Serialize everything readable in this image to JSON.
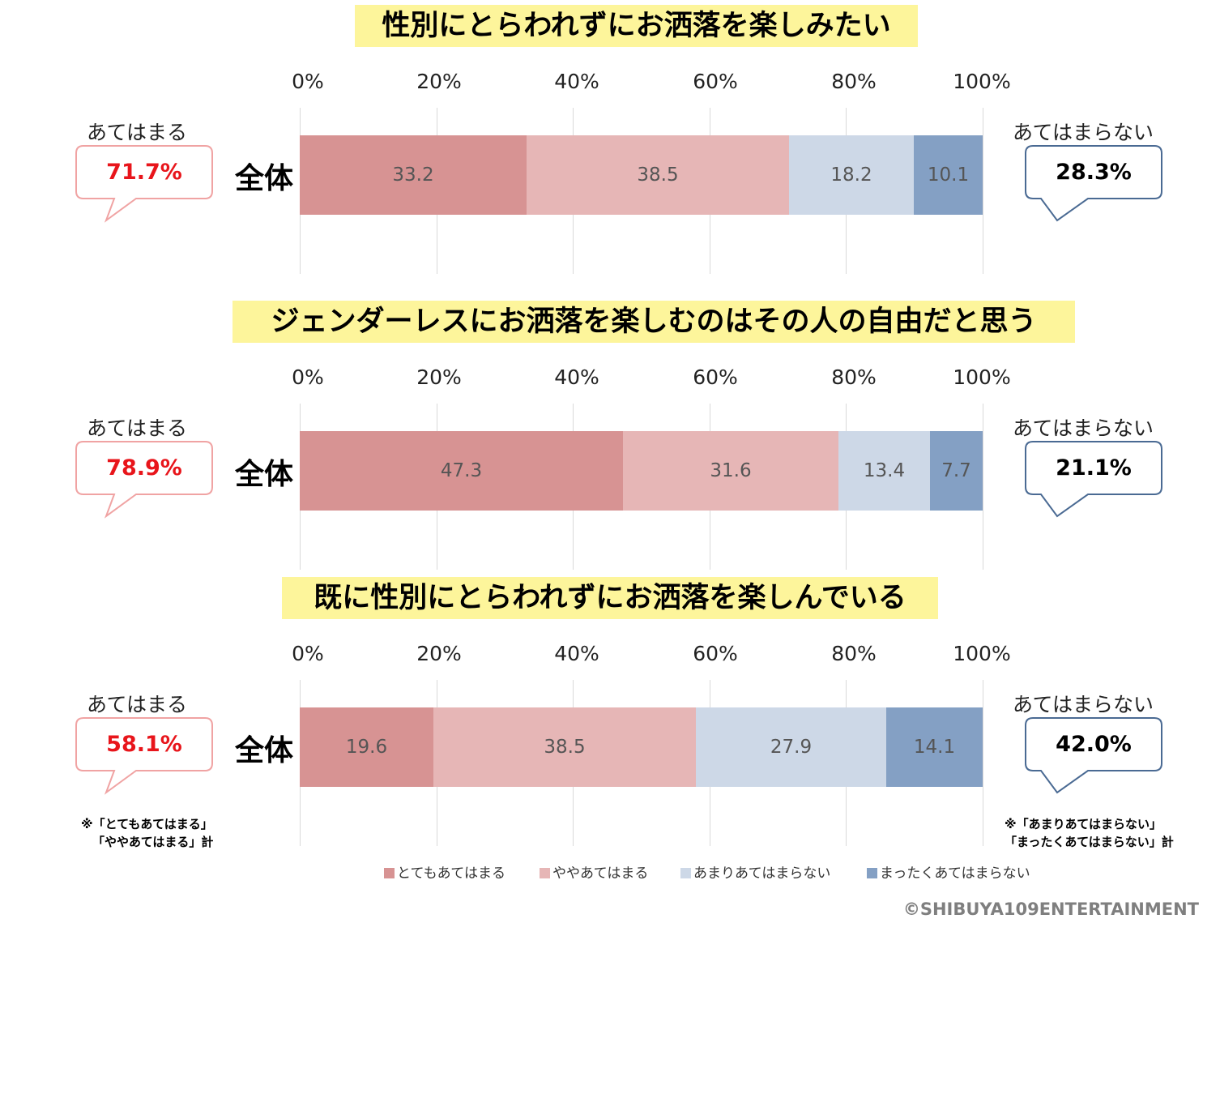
{
  "chart_data": [
    {
      "type": "bar",
      "orientation": "horizontal-stacked-100",
      "title": "性別にとらわれずにお洒落を楽しみたい",
      "categories": [
        "全体"
      ],
      "xlim": [
        0,
        100
      ],
      "tick_labels": [
        "0%",
        "20%",
        "40%",
        "60%",
        "80%",
        "100%"
      ],
      "series": [
        {
          "name": "とてもあてはまる",
          "values": [
            33.2
          ]
        },
        {
          "name": "ややあてはまる",
          "values": [
            38.5
          ]
        },
        {
          "name": "あまりあてはまらない",
          "values": [
            18.2
          ]
        },
        {
          "name": "まったくあてはまらない",
          "values": [
            10.1
          ]
        }
      ],
      "callouts": {
        "left": {
          "label": "あてはまる",
          "value": "71.7%"
        },
        "right": {
          "label": "あてはまらない",
          "value": "28.3%"
        }
      },
      "grid": true
    },
    {
      "type": "bar",
      "orientation": "horizontal-stacked-100",
      "title": "ジェンダーレスにお洒落を楽しむのはその人の自由だと思う",
      "categories": [
        "全体"
      ],
      "xlim": [
        0,
        100
      ],
      "tick_labels": [
        "0%",
        "20%",
        "40%",
        "60%",
        "80%",
        "100%"
      ],
      "series": [
        {
          "name": "とてもあてはまる",
          "values": [
            47.3
          ]
        },
        {
          "name": "ややあてはまる",
          "values": [
            31.6
          ]
        },
        {
          "name": "あまりあてはまらない",
          "values": [
            13.4
          ]
        },
        {
          "name": "まったくあてはまらない",
          "values": [
            7.7
          ]
        }
      ],
      "callouts": {
        "left": {
          "label": "あてはまる",
          "value": "78.9%"
        },
        "right": {
          "label": "あてはまらない",
          "value": "21.1%"
        }
      },
      "grid": true
    },
    {
      "type": "bar",
      "orientation": "horizontal-stacked-100",
      "title": "既に性別にとらわれずにお洒落を楽しんでいる",
      "categories": [
        "全体"
      ],
      "xlim": [
        0,
        100
      ],
      "tick_labels": [
        "0%",
        "20%",
        "40%",
        "60%",
        "80%",
        "100%"
      ],
      "series": [
        {
          "name": "とてもあてはまる",
          "values": [
            19.6
          ]
        },
        {
          "name": "ややあてはまる",
          "values": [
            38.5
          ]
        },
        {
          "name": "あまりあてはまらない",
          "values": [
            27.9
          ]
        },
        {
          "name": "まったくあてはまらない",
          "values": [
            14.1
          ]
        }
      ],
      "callouts": {
        "left": {
          "label": "あてはまる",
          "value": "58.1%"
        },
        "right": {
          "label": "あてはまらない",
          "value": "42.0%"
        }
      },
      "grid": true
    }
  ],
  "legend": {
    "placement": "bottom",
    "items": [
      {
        "label": "とてもあてはまる",
        "color": "#d79393"
      },
      {
        "label": "ややあてはまる",
        "color": "#e6b6b6"
      },
      {
        "label": "あまりあてはまらない",
        "color": "#cdd8e7"
      },
      {
        "label": "まったくあてはまらない",
        "color": "#84a0c4"
      }
    ]
  },
  "notes": {
    "left_line1": "※「とてもあてはまる」",
    "left_line2": "「ややあてはまる」計",
    "right_line1": "※「あまりあてはまらない」",
    "right_line2": "「まったくあてはまらない」計"
  },
  "colors": {
    "title_highlight": "#fdf59b",
    "positive_value": "#e8151b",
    "negative_value": "#000000",
    "positive_border": "#f0a3a3",
    "negative_border": "#4a6a93"
  },
  "copyright": "©SHIBUYA109ENTERTAINMENT"
}
